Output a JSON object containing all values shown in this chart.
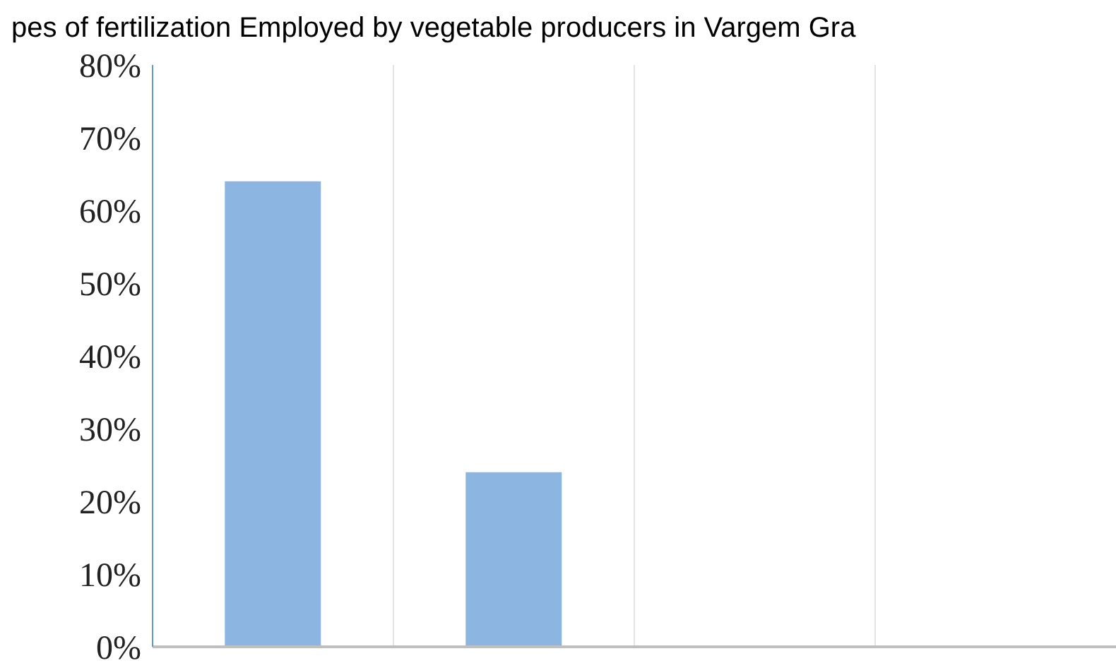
{
  "chart_data": {
    "type": "bar",
    "title": "pes of fertilization  Employed by vegetable producers in Vargem Gra",
    "categories": [
      null,
      null,
      null,
      null
    ],
    "values": [
      64,
      24,
      0,
      0
    ],
    "color": "#8db5e2",
    "ylim": [
      0,
      80
    ],
    "yticks": [
      {
        "value": 0,
        "label": "0%"
      },
      {
        "value": 10,
        "label": "10%"
      },
      {
        "value": 20,
        "label": "20%"
      },
      {
        "value": 30,
        "label": "30%"
      },
      {
        "value": 40,
        "label": "40%"
      },
      {
        "value": 50,
        "label": "50%"
      },
      {
        "value": 60,
        "label": "60%"
      },
      {
        "value": 70,
        "label": "70%"
      },
      {
        "value": 80,
        "label": "80%"
      }
    ],
    "grid": "x"
  }
}
